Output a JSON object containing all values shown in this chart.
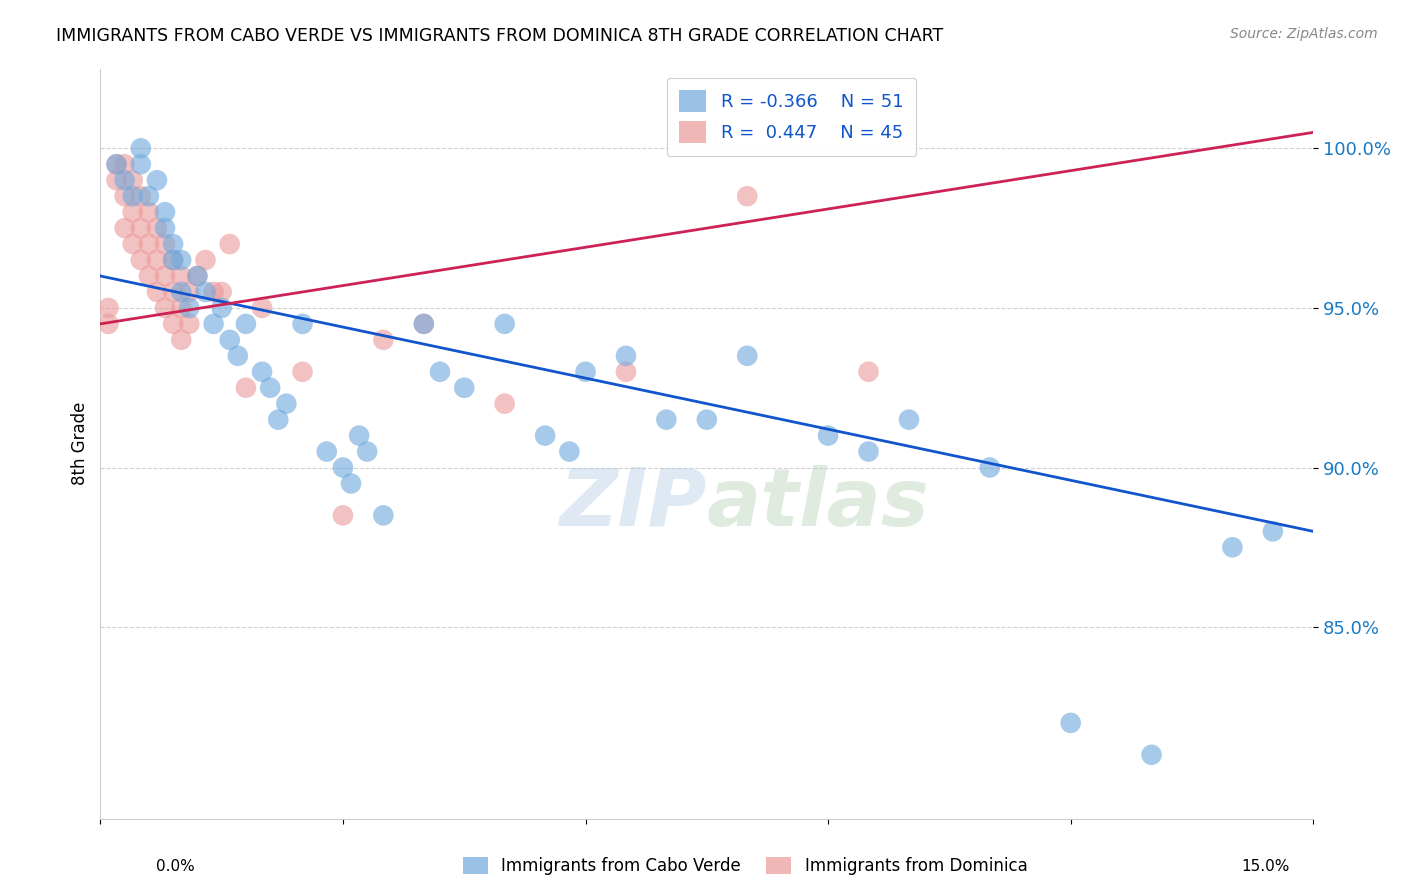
{
  "title": "IMMIGRANTS FROM CABO VERDE VS IMMIGRANTS FROM DOMINICA 8TH GRADE CORRELATION CHART",
  "source": "Source: ZipAtlas.com",
  "ylabel": "8th Grade",
  "y_ticks": [
    85.0,
    90.0,
    95.0,
    100.0
  ],
  "y_tick_labels": [
    "85.0%",
    "90.0%",
    "95.0%",
    "100.0%"
  ],
  "xlim": [
    0.0,
    15.0
  ],
  "ylim": [
    79.0,
    102.5
  ],
  "cabo_verde_R": -0.366,
  "cabo_verde_N": 51,
  "dominica_R": 0.447,
  "dominica_N": 45,
  "cabo_verde_color": "#6fa8dc",
  "dominica_color": "#ea9999",
  "cabo_verde_line_color": "#1155cc",
  "dominica_line_color": "#cc2255",
  "legend_label_cabo": "Immigrants from Cabo Verde",
  "legend_label_dominica": "Immigrants from Dominica",
  "cabo_verde_x": [
    0.2,
    0.3,
    0.4,
    0.5,
    0.5,
    0.6,
    0.7,
    0.8,
    0.8,
    0.9,
    0.9,
    1.0,
    1.0,
    1.1,
    1.2,
    1.3,
    1.4,
    1.5,
    1.6,
    1.7,
    1.8,
    2.0,
    2.1,
    2.2,
    2.3,
    2.5,
    3.0,
    3.1,
    3.3,
    3.5,
    4.0,
    4.5,
    5.0,
    5.5,
    6.0,
    7.0,
    8.0,
    9.0,
    10.0,
    11.0,
    12.0,
    13.0,
    14.0,
    14.5,
    2.8,
    3.2,
    4.2,
    5.8,
    6.5,
    7.5,
    9.5
  ],
  "cabo_verde_y": [
    99.5,
    99.0,
    98.5,
    100.0,
    99.5,
    98.5,
    99.0,
    98.0,
    97.5,
    97.0,
    96.5,
    96.5,
    95.5,
    95.0,
    96.0,
    95.5,
    94.5,
    95.0,
    94.0,
    93.5,
    94.5,
    93.0,
    92.5,
    91.5,
    92.0,
    94.5,
    90.0,
    89.5,
    90.5,
    88.5,
    94.5,
    92.5,
    94.5,
    91.0,
    93.0,
    91.5,
    93.5,
    91.0,
    91.5,
    90.0,
    82.0,
    81.0,
    87.5,
    88.0,
    90.5,
    91.0,
    93.0,
    90.5,
    93.5,
    91.5,
    90.5
  ],
  "dominica_x": [
    0.1,
    0.1,
    0.2,
    0.2,
    0.3,
    0.3,
    0.3,
    0.4,
    0.4,
    0.4,
    0.5,
    0.5,
    0.5,
    0.6,
    0.6,
    0.6,
    0.7,
    0.7,
    0.7,
    0.8,
    0.8,
    0.8,
    0.9,
    0.9,
    0.9,
    1.0,
    1.0,
    1.0,
    1.1,
    1.1,
    1.2,
    1.3,
    1.4,
    1.5,
    1.6,
    1.8,
    2.0,
    2.5,
    3.0,
    3.5,
    4.0,
    5.0,
    6.5,
    8.0,
    9.5
  ],
  "dominica_y": [
    95.0,
    94.5,
    99.5,
    99.0,
    99.5,
    98.5,
    97.5,
    99.0,
    98.0,
    97.0,
    98.5,
    97.5,
    96.5,
    98.0,
    97.0,
    96.0,
    97.5,
    96.5,
    95.5,
    97.0,
    96.0,
    95.0,
    96.5,
    95.5,
    94.5,
    96.0,
    95.0,
    94.0,
    95.5,
    94.5,
    96.0,
    96.5,
    95.5,
    95.5,
    97.0,
    92.5,
    95.0,
    93.0,
    88.5,
    94.0,
    94.5,
    92.0,
    93.0,
    98.5,
    93.0
  ],
  "cabo_line_x0": 0.0,
  "cabo_line_y0": 96.0,
  "cabo_line_x1": 15.0,
  "cabo_line_y1": 88.0,
  "dom_line_x0": 0.0,
  "dom_line_y0": 94.5,
  "dom_line_x1": 15.0,
  "dom_line_y1": 100.5
}
